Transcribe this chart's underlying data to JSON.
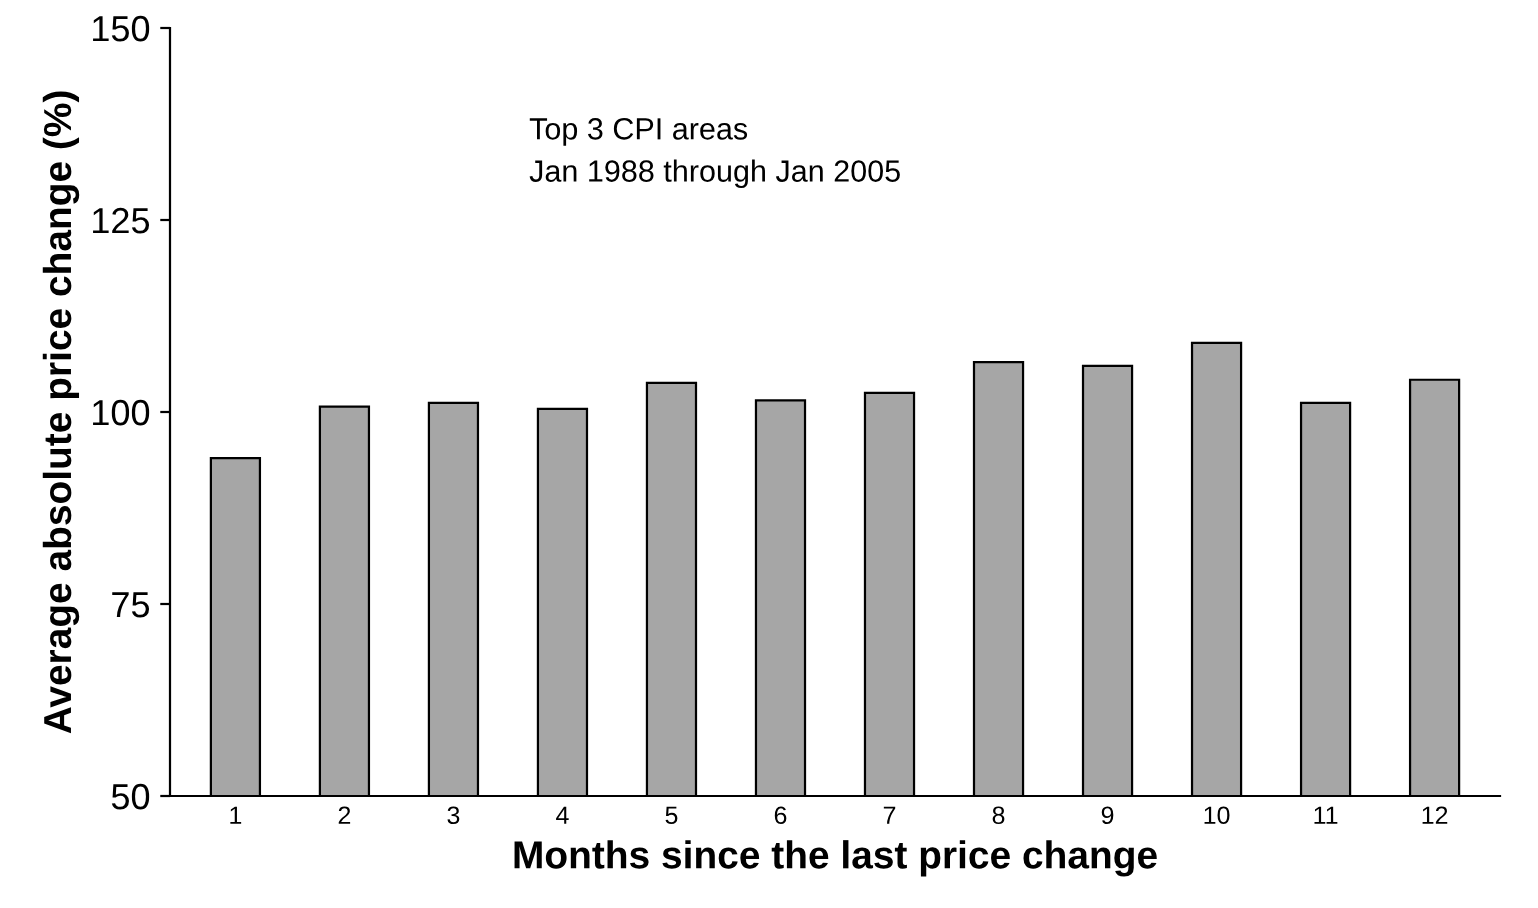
{
  "chart_data": {
    "type": "bar",
    "xlabel": "Months since the last price change",
    "ylabel": "Average absolute price change (%)",
    "categories": [
      "1",
      "2",
      "3",
      "4",
      "5",
      "6",
      "7",
      "8",
      "9",
      "10",
      "11",
      "12"
    ],
    "values": [
      94,
      100.7,
      101.2,
      100.4,
      103.8,
      101.5,
      102.5,
      106.5,
      106,
      109,
      101.2,
      104.2
    ],
    "color": "#a6a6a6",
    "ylim": [
      50,
      150
    ],
    "yticks": [
      50,
      75,
      100,
      125,
      150
    ],
    "grid": false,
    "legend": false,
    "annotations": [
      "Top 3 CPI areas",
      "Jan 1988 through Jan 2005"
    ]
  }
}
